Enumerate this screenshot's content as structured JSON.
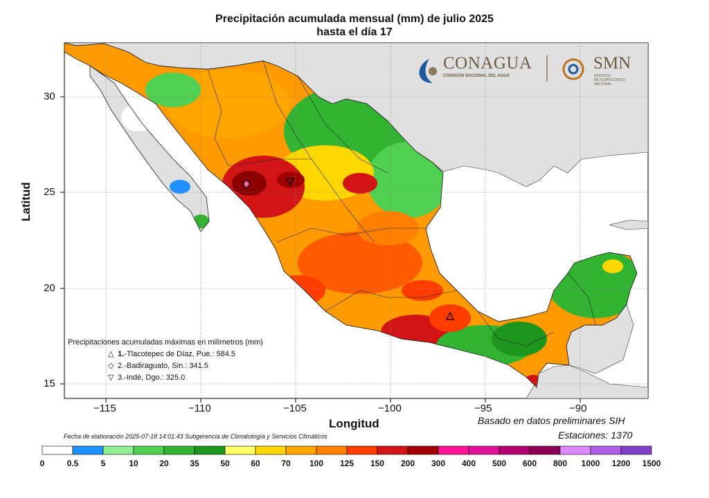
{
  "title": {
    "line1": "Precipitación acumulada mensual (mm) de julio 2025",
    "line2": "hasta el día 17"
  },
  "axes": {
    "xlabel": "Longitud",
    "ylabel": "Latitud",
    "xticks": [
      "−115",
      "−110",
      "−105",
      "−100",
      "−95",
      "−90"
    ],
    "yticks": [
      "30",
      "25",
      "20",
      "15"
    ]
  },
  "logos": {
    "conagua": "CONAGUA",
    "conagua_sub": "COMISIÓN NACIONAL DEL AGUA",
    "smn": "SMN",
    "smn_sub": "SERVICIO METEOROLÓGICO NACIONAL"
  },
  "max_legend": {
    "header": "Precipitaciones acumuladas máximas en milímetros (mm)",
    "items": [
      {
        "symbol": "△",
        "rank": "1.",
        "text": "-Tlacotepec de Díaz, Pue.: 584.5"
      },
      {
        "symbol": "◇",
        "rank": "2.",
        "text": "-Badiraguato, Sin.: 341.5"
      },
      {
        "symbol": "▽",
        "rank": "3.",
        "text": "-Indé, Dgo.: 325.0"
      }
    ]
  },
  "notes": {
    "based_on": "Basado en datos preliminares SIH",
    "stations": "Estaciones:  1370",
    "made": "Fecha de elaboración 2025-07-18 14:01:43 Subgerencia de Climatología y Servicios Climáticos"
  },
  "colorbar": {
    "labels": [
      "0",
      "0.5",
      "5",
      "10",
      "20",
      "35",
      "50",
      "60",
      "70",
      "100",
      "125",
      "150",
      "200",
      "300",
      "400",
      "500",
      "600",
      "800",
      "1000",
      "1200",
      "1500"
    ],
    "colors": [
      "#ffffff",
      "#1e90ff",
      "#90ee90",
      "#50d050",
      "#32b432",
      "#1e961e",
      "#ffff66",
      "#ffd700",
      "#ffa500",
      "#ff7f00",
      "#ff3c00",
      "#d21414",
      "#a00000",
      "#ff1493",
      "#e0109a",
      "#b4006e",
      "#8b0050",
      "#dd88ff",
      "#b060e8",
      "#8040c8",
      "#5a2ea0"
    ]
  },
  "map_colors": {
    "sea": "#ffffff",
    "land_outside": "#e0e0e0",
    "borders": "#222222"
  }
}
